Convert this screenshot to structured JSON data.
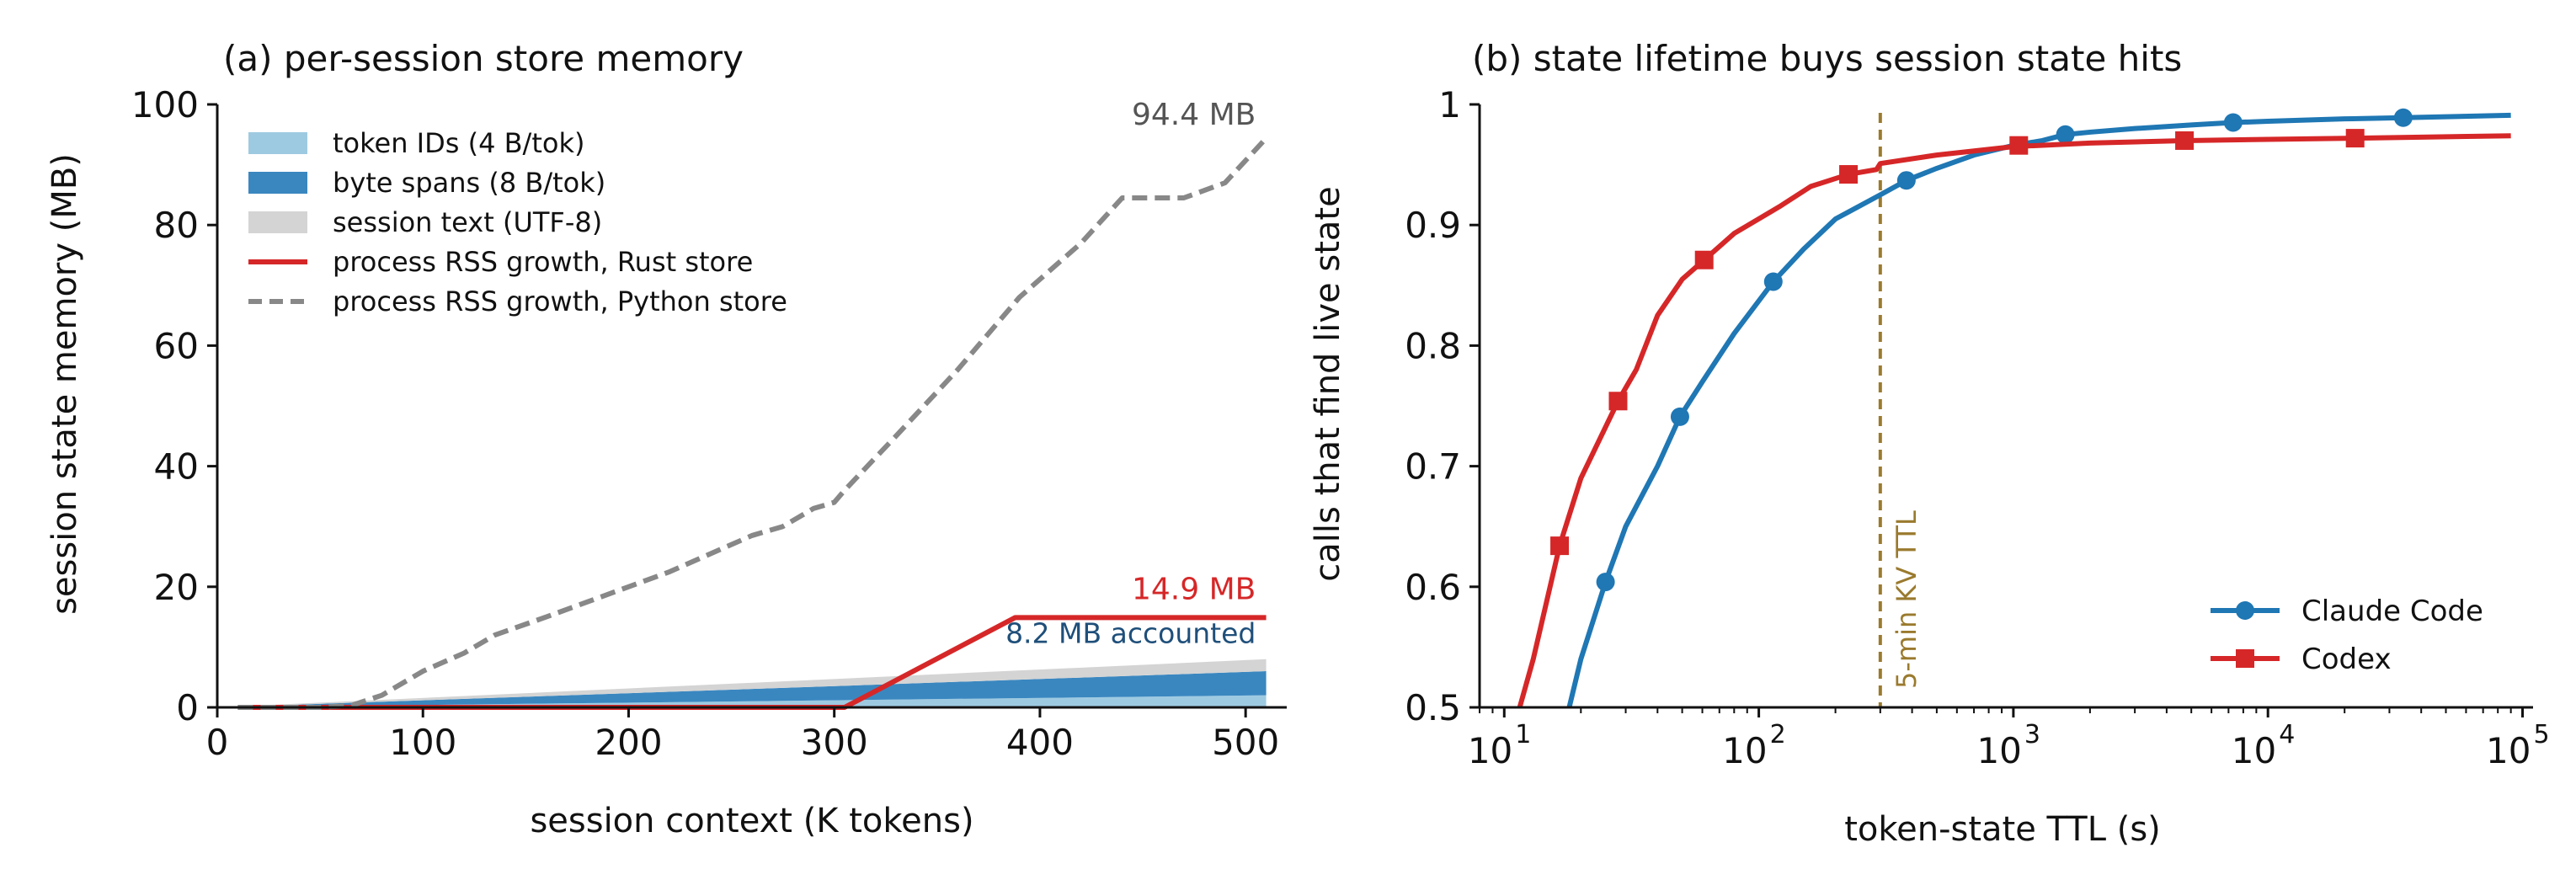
{
  "chart_data": [
    {
      "type": "area",
      "title": "(a) per-session store memory",
      "xlabel": "session context (K tokens)",
      "ylabel": "session state memory (MB)",
      "xlim": [
        0,
        520
      ],
      "ylim": [
        0,
        100
      ],
      "xticks": [
        0,
        100,
        200,
        300,
        400,
        500
      ],
      "yticks": [
        0,
        20,
        40,
        60,
        80,
        100
      ],
      "legend_position": "top-left",
      "grid": false,
      "stacked_areas": [
        {
          "name": "token IDs (4 B/tok)",
          "color": "#9ecae1",
          "x": [
            10,
            510
          ],
          "values": [
            0.04,
            2.0
          ]
        },
        {
          "name": "byte spans (8 B/tok)",
          "color": "#3a87c0",
          "x": [
            10,
            510
          ],
          "values": [
            0.08,
            4.0
          ]
        },
        {
          "name": "session text (UTF-8)",
          "color": "#d4d4d4",
          "x": [
            10,
            510
          ],
          "values": [
            0.04,
            2.0
          ]
        }
      ],
      "series": [
        {
          "name": "process RSS growth, Rust store",
          "color": "#d62728",
          "style": "solid",
          "x": [
            10,
            100,
            200,
            300,
            305,
            388,
            400,
            510
          ],
          "y": [
            0,
            0,
            0,
            0,
            0,
            14.9,
            14.9,
            14.9
          ]
        },
        {
          "name": "process RSS growth, Python store",
          "color": "#888888",
          "style": "dashed",
          "x": [
            10,
            50,
            65,
            80,
            100,
            120,
            135,
            160,
            180,
            200,
            220,
            240,
            260,
            275,
            290,
            300,
            305,
            330,
            360,
            390,
            420,
            440,
            450,
            470,
            490,
            510
          ],
          "y": [
            0,
            0,
            0.3,
            2,
            6,
            9,
            12,
            15,
            17.5,
            20,
            22.5,
            25.5,
            28.5,
            30,
            33,
            34,
            36,
            45,
            56,
            68,
            77,
            84.5,
            84.5,
            84.5,
            87,
            94.4
          ]
        }
      ],
      "annotations": [
        {
          "text": "94.4 MB",
          "x": 505,
          "y": 94.4,
          "color": "#555555"
        },
        {
          "text": "14.9 MB",
          "x": 505,
          "y": 14.9,
          "color": "#d62728"
        },
        {
          "text": "8.2 MB accounted",
          "x": 505,
          "y": 8.2,
          "color": "#1f4f7a"
        }
      ]
    },
    {
      "type": "line",
      "title": "(b) state lifetime buys session state hits",
      "xlabel": "token-state TTL (s)",
      "ylabel": "calls that find live state",
      "xscale": "log",
      "xlim": [
        8,
        110000
      ],
      "ylim": [
        0.5,
        1.0
      ],
      "xticks": [
        "10",
        "10",
        "10",
        "10",
        "10"
      ],
      "xtick_exponents": [
        "1",
        "2",
        "3",
        "4",
        "5"
      ],
      "yticks": [
        0.5,
        0.6,
        0.7,
        0.8,
        0.9,
        1.0
      ],
      "legend_position": "lower-right",
      "grid": false,
      "series": [
        {
          "name": "Claude Code",
          "color": "#1f77b4",
          "marker": "circle",
          "x": [
            18,
            20,
            25,
            30,
            40,
            49,
            60,
            80,
            114,
            150,
            200,
            300,
            380,
            500,
            700,
            1000,
            1300,
            1600,
            2000,
            3000,
            5000,
            7300,
            10000,
            20000,
            34000,
            90000
          ],
          "y": [
            0.5,
            0.54,
            0.604,
            0.65,
            0.7,
            0.741,
            0.77,
            0.81,
            0.853,
            0.88,
            0.905,
            0.925,
            0.937,
            0.947,
            0.958,
            0.966,
            0.97,
            0.975,
            0.977,
            0.98,
            0.983,
            0.985,
            0.986,
            0.988,
            0.989,
            0.991
          ],
          "markers_x": [
            25,
            49,
            114,
            380,
            1600,
            7300,
            34000
          ],
          "markers_y": [
            0.604,
            0.741,
            0.853,
            0.937,
            0.975,
            0.985,
            0.989
          ]
        },
        {
          "name": "Codex",
          "color": "#d62728",
          "marker": "square",
          "x": [
            11.5,
            13,
            16.5,
            20,
            28,
            33,
            40,
            50,
            61,
            80,
            120,
            160,
            225,
            290,
            300,
            500,
            1000,
            2000,
            4700,
            10000,
            22000,
            90000
          ],
          "y": [
            0.5,
            0.54,
            0.634,
            0.69,
            0.754,
            0.78,
            0.825,
            0.855,
            0.871,
            0.893,
            0.915,
            0.932,
            0.942,
            0.946,
            0.951,
            0.958,
            0.965,
            0.968,
            0.97,
            0.971,
            0.972,
            0.974
          ],
          "markers_x": [
            16.5,
            28,
            61,
            225,
            1050,
            4700,
            22000
          ],
          "markers_y": [
            0.634,
            0.754,
            0.871,
            0.942,
            0.966,
            0.97,
            0.972
          ]
        }
      ],
      "reference_line": {
        "x": 300,
        "label": "5-min KV TTL",
        "color": "#9a7a2e",
        "style": "dashed"
      }
    }
  ]
}
